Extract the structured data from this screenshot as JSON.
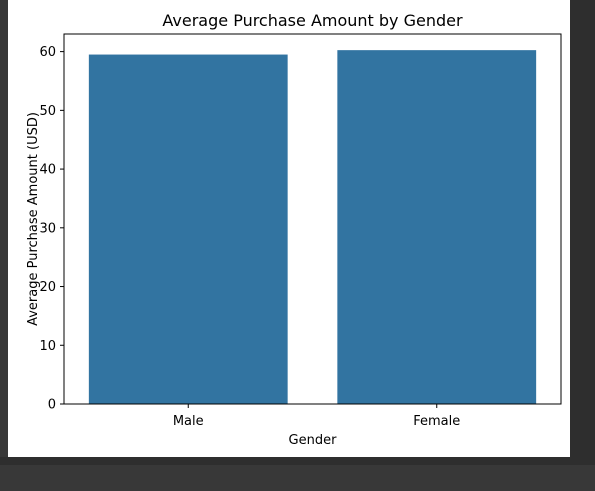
{
  "chart_data": {
    "type": "bar",
    "title": "Average Purchase Amount by Gender",
    "xlabel": "Gender",
    "ylabel": "Average Purchase Amount (USD)",
    "categories": [
      "Male",
      "Female"
    ],
    "values": [
      59.5,
      60.25
    ],
    "ylim": [
      0,
      63
    ],
    "yticks": [
      "0",
      "10",
      "20",
      "30",
      "40",
      "50",
      "60"
    ],
    "grid": false,
    "bar_color": "#3274a1"
  }
}
